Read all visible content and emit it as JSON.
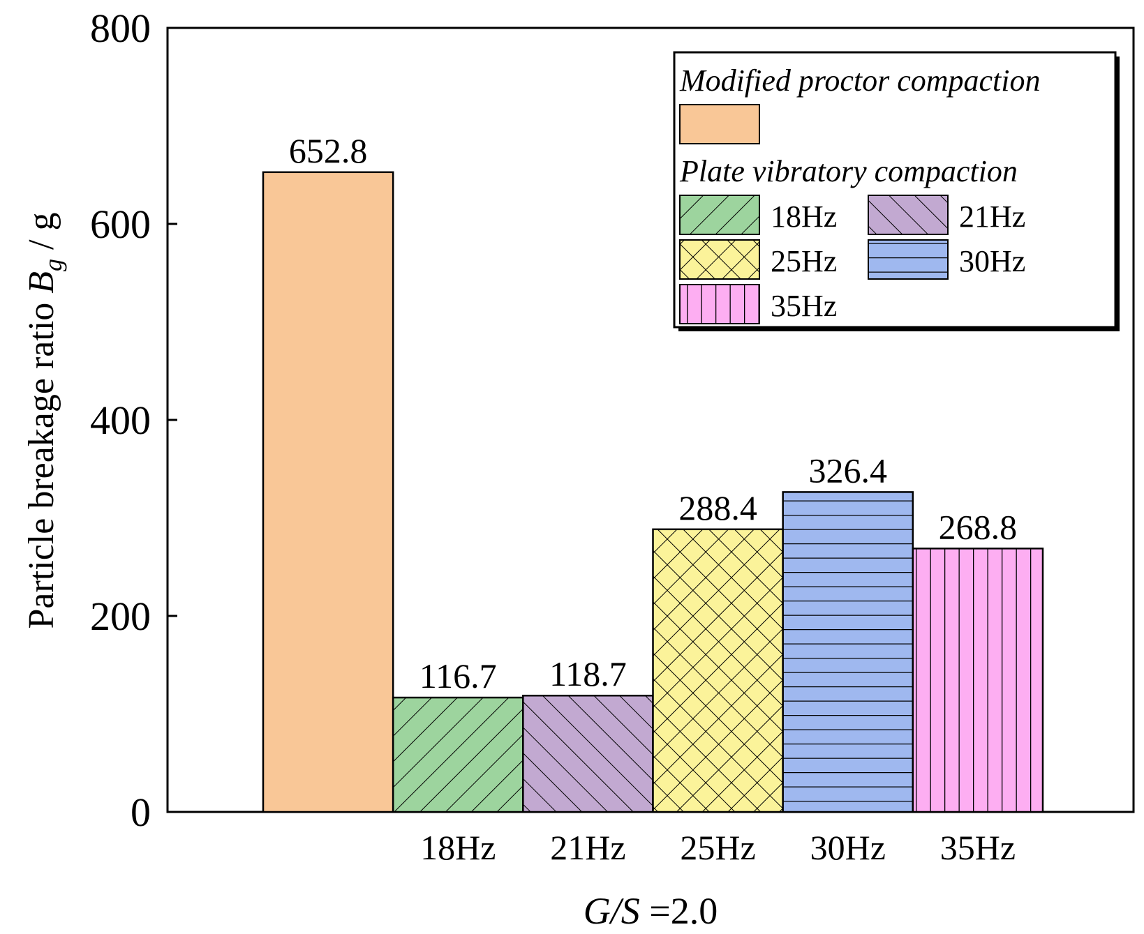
{
  "chart_data": {
    "type": "bar",
    "categories": [
      "",
      "18Hz",
      "21Hz",
      "25Hz",
      "30Hz",
      "35Hz"
    ],
    "values": [
      652.8,
      116.7,
      118.7,
      288.4,
      326.4,
      268.8
    ],
    "value_labels": [
      "652.8",
      "116.7",
      "118.7",
      "288.4",
      "326.4",
      "268.8"
    ],
    "series_keys": [
      "proctor",
      "hz18",
      "hz21",
      "hz25",
      "hz30",
      "hz35"
    ],
    "ylabel_prefix": "Particle breakage ratio ",
    "ylabel_symbol": "B",
    "ylabel_subscript": "g",
    "ylabel_suffix": " / g",
    "xlabel_italic": "G/S",
    "xlabel_rest": " =2.0",
    "ylim": [
      0,
      800
    ],
    "yticks": [
      0,
      200,
      400,
      600,
      800
    ],
    "legend": {
      "placement": "top-right",
      "group1_title": "Modified proctor compaction",
      "group2_title": "Plate vibratory compaction",
      "entries": [
        "18Hz",
        "21Hz",
        "25Hz",
        "30Hz",
        "35Hz"
      ]
    },
    "colors": {
      "proctor": "#f9c797",
      "hz18": "#9dd49e",
      "hz21": "#c2a9d1",
      "hz25": "#fbf39a",
      "hz30": "#9fb8ef",
      "hz35": "#fdaef2"
    },
    "patterns": {
      "proctor": "none",
      "hz18": "forward-diagonal",
      "hz21": "back-diagonal",
      "hz25": "crosshatch",
      "hz30": "horizontal",
      "hz35": "vertical"
    }
  }
}
